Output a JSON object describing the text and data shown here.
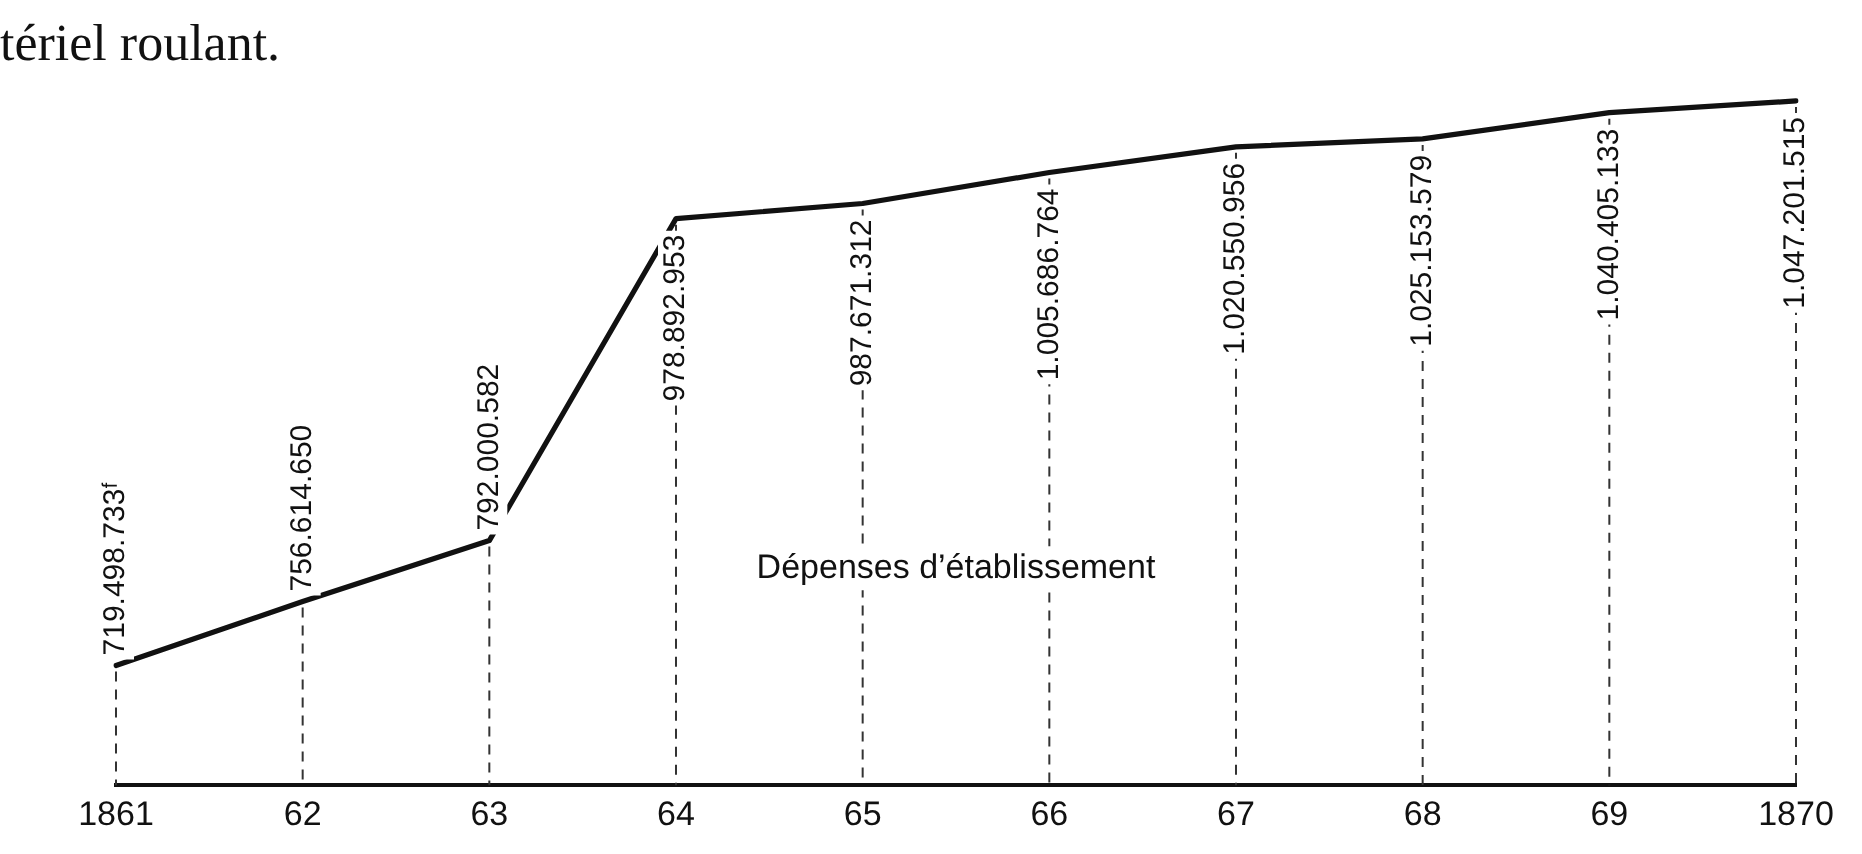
{
  "chart_data": {
    "type": "line",
    "title": "tériel roulant.",
    "categories": [
      "1861",
      "62",
      "63",
      "64",
      "65",
      "66",
      "67",
      "68",
      "69",
      "1870"
    ],
    "series": [
      {
        "name": "Dépenses d’établissement",
        "color": "#111111",
        "values": [
          719498733,
          756614650,
          792000582,
          978892953,
          987671312,
          1005686764,
          1020550956,
          1025153579,
          1040405133,
          1047201515
        ],
        "value_labels": [
          "719.498.733ᶠ",
          "756.614.650",
          "792.000.582",
          "978.892.953",
          "987.671.312",
          "1.005.686.764",
          "1.020.550.956",
          "1.025.153.579",
          "1.040.405.133",
          "1.047.201.515"
        ]
      }
    ],
    "grid": "x",
    "legend": false,
    "marker": "none",
    "line_style": "solid",
    "tick_labels": "x"
  }
}
